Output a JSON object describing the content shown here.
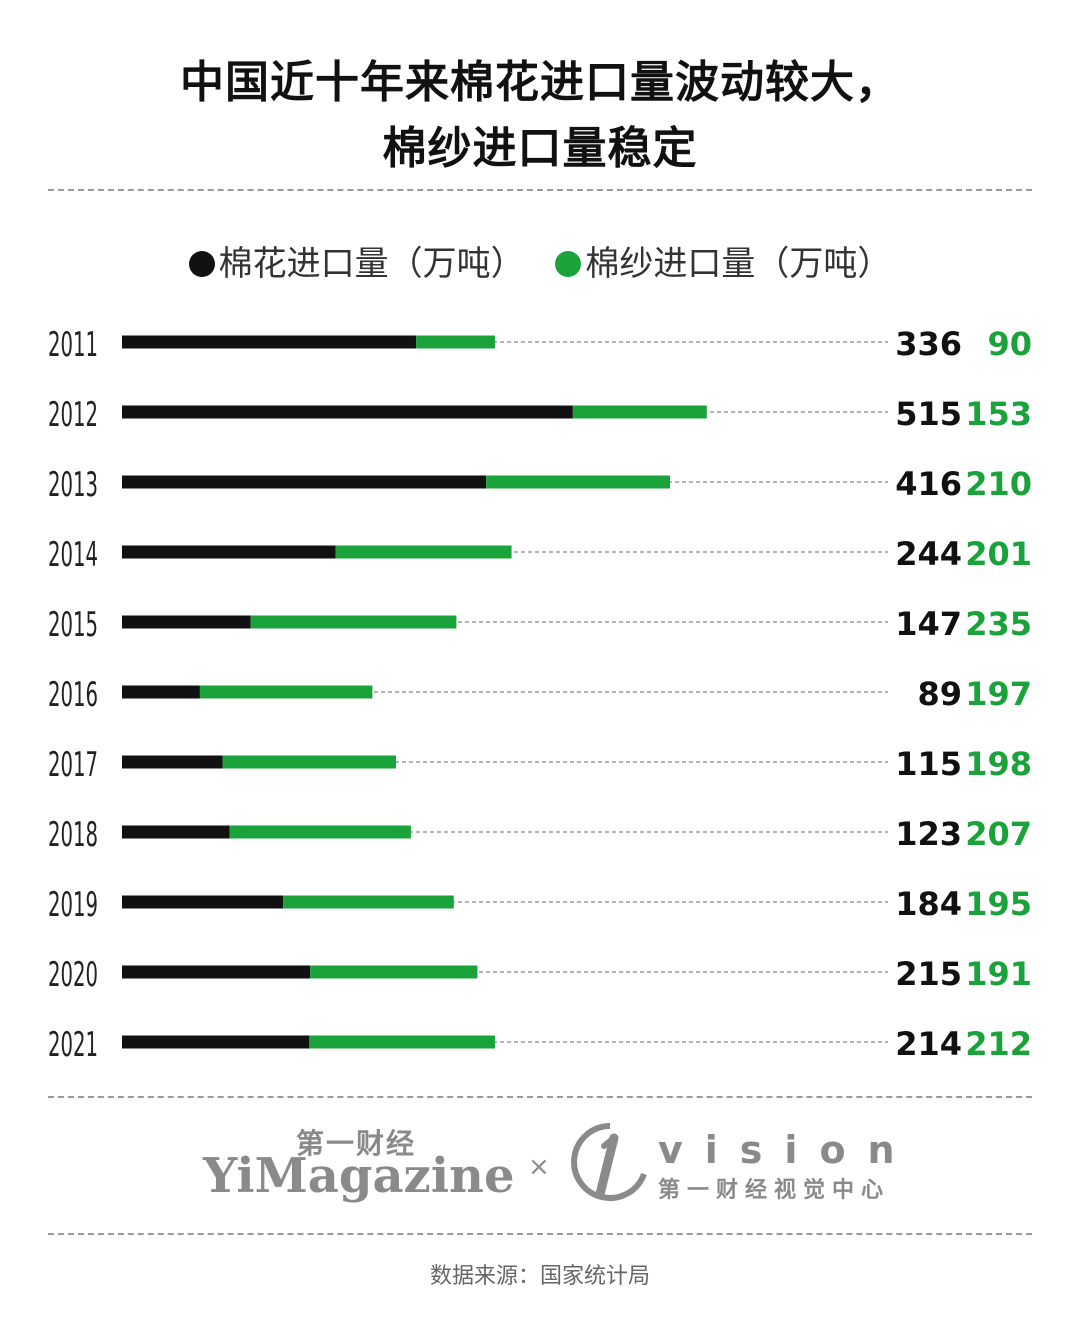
{
  "title_line1": "中国近十年来棉花进口量波动较大，",
  "title_line2": "棉纱进口量稳定",
  "legend": {
    "cotton_label": "棉花进口量（万吨）",
    "yarn_label": "棉纱进口量（万吨）"
  },
  "colors": {
    "cotton": "#111111",
    "yarn": "#1aa33a",
    "guide": "#888888"
  },
  "chart_data": {
    "type": "bar",
    "stacked": true,
    "orientation": "horizontal",
    "categories": [
      "2011",
      "2012",
      "2013",
      "2014",
      "2015",
      "2016",
      "2017",
      "2018",
      "2019",
      "2020",
      "2021"
    ],
    "series": [
      {
        "name": "棉花进口量（万吨）",
        "values": [
          336,
          515,
          416,
          244,
          147,
          89,
          115,
          123,
          184,
          215,
          214
        ]
      },
      {
        "name": "棉纱进口量（万吨）",
        "values": [
          90,
          153,
          210,
          201,
          235,
          197,
          198,
          207,
          195,
          191,
          212
        ]
      }
    ],
    "xlim": [
      0,
      875
    ],
    "value_labels": true,
    "legend_position": "top-center"
  },
  "brand": {
    "cn_name": "第一财经",
    "en_name": "YiMagazine",
    "times": "×",
    "vision": "vision",
    "vision_cn": "第一财经视觉中心"
  },
  "source": "数据来源：国家统计局"
}
